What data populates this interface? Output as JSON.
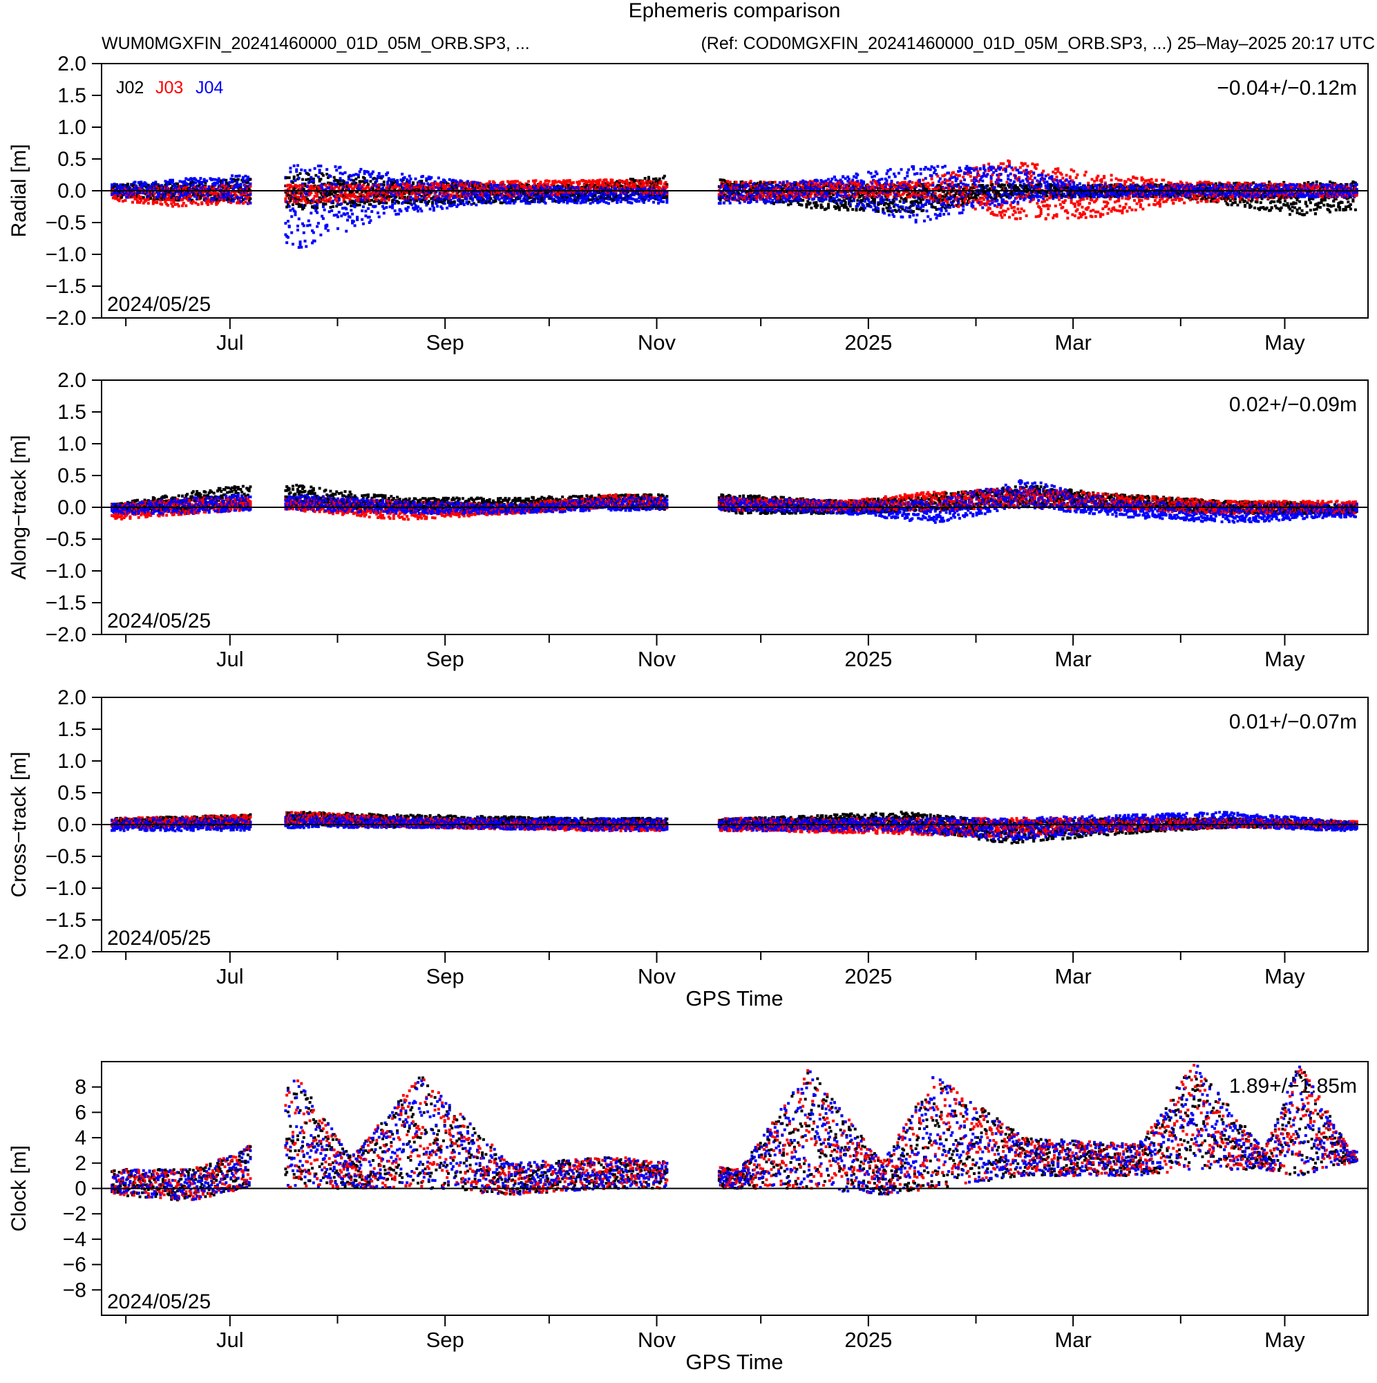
{
  "header": {
    "title": "Ephemeris comparison",
    "subtitle_left": "WUM0MGXFIN_20241460000_01D_05M_ORB.SP3, ...",
    "subtitle_right": "(Ref: COD0MGXFIN_20241460000_01D_05M_ORB.SP3, ...) 25–May–2025 20:17 UTC"
  },
  "legend": [
    {
      "name": "J02",
      "color": "#000000"
    },
    {
      "name": "J03",
      "color": "#ff0000"
    },
    {
      "name": "J04",
      "color": "#0000ff"
    }
  ],
  "chart_data": [
    {
      "type": "scatter",
      "ylabel": "Radial [m]",
      "ylim": [
        -2.0,
        2.0
      ],
      "yticks": [
        "2.0",
        "1.5",
        "1.0",
        "0.5",
        "0.0",
        "−0.5",
        "−1.0",
        "−1.5",
        "−2.0"
      ],
      "xticks": [
        "Jul",
        "Sep",
        "Nov",
        "2025",
        "Mar",
        "May"
      ],
      "xlim": [
        "2024-05-25",
        "2025-05-25"
      ],
      "start_label": "2024/05/25",
      "stat": "−0.04+/−0.12m",
      "series": [
        {
          "name": "J02",
          "color": "#000000"
        },
        {
          "name": "J03",
          "color": "#ff0000"
        },
        {
          "name": "J04",
          "color": "#0000ff"
        }
      ],
      "envelope": [
        {
          "x": "2024-05-28",
          "J02": [
            -0.1,
            0.1
          ],
          "J03": [
            -0.15,
            0.05
          ],
          "J04": [
            -0.1,
            0.12
          ]
        },
        {
          "x": "2024-06-15",
          "J02": [
            -0.15,
            0.12
          ],
          "J03": [
            -0.25,
            0.08
          ],
          "J04": [
            -0.12,
            0.18
          ]
        },
        {
          "x": "2024-07-05",
          "J02": [
            -0.15,
            0.2
          ],
          "J03": [
            -0.2,
            0.1
          ],
          "J04": [
            -0.2,
            0.25
          ]
        },
        {
          "x": "2024-07-20",
          "J02": [
            -0.3,
            0.3
          ],
          "J03": [
            -0.2,
            0.1
          ],
          "J04": [
            -0.95,
            0.45
          ]
        },
        {
          "x": "2024-08-15",
          "J02": [
            -0.2,
            0.2
          ],
          "J03": [
            -0.15,
            0.1
          ],
          "J04": [
            -0.4,
            0.3
          ]
        },
        {
          "x": "2024-09-15",
          "J02": [
            -0.2,
            0.1
          ],
          "J03": [
            -0.1,
            0.15
          ],
          "J04": [
            -0.2,
            0.1
          ]
        },
        {
          "x": "2024-10-15",
          "J02": [
            -0.15,
            0.1
          ],
          "J03": [
            -0.05,
            0.18
          ],
          "J04": [
            -0.2,
            0.05
          ]
        },
        {
          "x": "2024-11-01",
          "J02": [
            -0.15,
            0.25
          ],
          "J03": [
            -0.05,
            0.15
          ],
          "J04": [
            -0.2,
            0.05
          ]
        },
        {
          "x": "2024-11-25",
          "J02": [
            -0.15,
            0.15
          ],
          "J03": [
            -0.15,
            0.15
          ],
          "J04": [
            -0.2,
            0.1
          ]
        },
        {
          "x": "2024-12-20",
          "J02": [
            -0.3,
            0.1
          ],
          "J03": [
            -0.1,
            0.15
          ],
          "J04": [
            -0.15,
            0.2
          ]
        },
        {
          "x": "2025-01-15",
          "J02": [
            -0.35,
            0.1
          ],
          "J03": [
            -0.1,
            0.15
          ],
          "J04": [
            -0.5,
            0.4
          ]
        },
        {
          "x": "2025-02-10",
          "J02": [
            -0.1,
            0.1
          ],
          "J03": [
            -0.45,
            0.5
          ],
          "J04": [
            -0.2,
            0.4
          ]
        },
        {
          "x": "2025-03-05",
          "J02": [
            -0.1,
            0.1
          ],
          "J03": [
            -0.45,
            0.3
          ],
          "J04": [
            -0.1,
            0.1
          ]
        },
        {
          "x": "2025-04-01",
          "J02": [
            -0.1,
            0.1
          ],
          "J03": [
            -0.2,
            0.15
          ],
          "J04": [
            -0.1,
            0.1
          ]
        },
        {
          "x": "2025-05-05",
          "J02": [
            -0.4,
            0.15
          ],
          "J03": [
            -0.1,
            0.1
          ],
          "J04": [
            -0.1,
            0.1
          ]
        },
        {
          "x": "2025-05-20",
          "J02": [
            -0.3,
            0.15
          ],
          "J03": [
            -0.1,
            0.1
          ],
          "J04": [
            -0.1,
            0.1
          ]
        }
      ]
    },
    {
      "type": "scatter",
      "ylabel": "Along−track [m]",
      "ylim": [
        -2.0,
        2.0
      ],
      "yticks": [
        "2.0",
        "1.5",
        "1.0",
        "0.5",
        "0.0",
        "−0.5",
        "−1.0",
        "−1.5",
        "−2.0"
      ],
      "xticks": [
        "Jul",
        "Sep",
        "Nov",
        "2025",
        "Mar",
        "May"
      ],
      "xlim": [
        "2024-05-25",
        "2025-05-25"
      ],
      "start_label": "2024/05/25",
      "stat": "0.02+/−0.09m",
      "series": [
        {
          "name": "J02",
          "color": "#000000"
        },
        {
          "name": "J03",
          "color": "#ff0000"
        },
        {
          "name": "J04",
          "color": "#0000ff"
        }
      ],
      "envelope": [
        {
          "x": "2024-05-28",
          "J02": [
            -0.05,
            0.05
          ],
          "J03": [
            -0.2,
            0.05
          ],
          "J04": [
            -0.1,
            0.05
          ]
        },
        {
          "x": "2024-06-20",
          "J02": [
            -0.05,
            0.25
          ],
          "J03": [
            -0.1,
            0.15
          ],
          "J04": [
            -0.1,
            0.15
          ]
        },
        {
          "x": "2024-07-05",
          "J02": [
            0.0,
            0.35
          ],
          "J03": [
            -0.05,
            0.15
          ],
          "J04": [
            -0.05,
            0.2
          ]
        },
        {
          "x": "2024-07-20",
          "J02": [
            0.0,
            0.35
          ],
          "J03": [
            -0.05,
            0.15
          ],
          "J04": [
            -0.05,
            0.2
          ]
        },
        {
          "x": "2024-08-20",
          "J02": [
            -0.05,
            0.15
          ],
          "J03": [
            -0.2,
            0.1
          ],
          "J04": [
            -0.1,
            0.1
          ]
        },
        {
          "x": "2024-09-20",
          "J02": [
            -0.05,
            0.15
          ],
          "J03": [
            -0.1,
            0.05
          ],
          "J04": [
            -0.1,
            0.05
          ]
        },
        {
          "x": "2024-10-20",
          "J02": [
            0.0,
            0.2
          ],
          "J03": [
            0.0,
            0.2
          ],
          "J04": [
            -0.05,
            0.15
          ]
        },
        {
          "x": "2024-11-25",
          "J02": [
            -0.1,
            0.2
          ],
          "J03": [
            -0.05,
            0.15
          ],
          "J04": [
            -0.05,
            0.15
          ]
        },
        {
          "x": "2024-12-25",
          "J02": [
            -0.1,
            0.1
          ],
          "J03": [
            -0.05,
            0.1
          ],
          "J04": [
            -0.1,
            0.1
          ]
        },
        {
          "x": "2025-01-20",
          "J02": [
            -0.05,
            0.2
          ],
          "J03": [
            -0.05,
            0.25
          ],
          "J04": [
            -0.25,
            0.1
          ]
        },
        {
          "x": "2025-02-15",
          "J02": [
            0.0,
            0.35
          ],
          "J03": [
            0.0,
            0.3
          ],
          "J04": [
            0.0,
            0.45
          ]
        },
        {
          "x": "2025-03-15",
          "J02": [
            0.0,
            0.2
          ],
          "J03": [
            -0.05,
            0.2
          ],
          "J04": [
            -0.15,
            0.1
          ]
        },
        {
          "x": "2025-04-15",
          "J02": [
            -0.1,
            0.1
          ],
          "J03": [
            -0.1,
            0.1
          ],
          "J04": [
            -0.25,
            0.05
          ]
        },
        {
          "x": "2025-05-20",
          "J02": [
            -0.1,
            0.05
          ],
          "J03": [
            -0.1,
            0.1
          ],
          "J04": [
            -0.15,
            0.05
          ]
        }
      ]
    },
    {
      "type": "scatter",
      "ylabel": "Cross−track [m]",
      "ylim": [
        -2.0,
        2.0
      ],
      "yticks": [
        "2.0",
        "1.5",
        "1.0",
        "0.5",
        "0.0",
        "−0.5",
        "−1.0",
        "−1.5",
        "−2.0"
      ],
      "xticks": [
        "Jul",
        "Sep",
        "Nov",
        "2025",
        "Mar",
        "May"
      ],
      "xlim": [
        "2024-05-25",
        "2025-05-25"
      ],
      "start_label": "2024/05/25",
      "stat": "0.01+/−0.07m",
      "xlabel": "GPS Time",
      "series": [
        {
          "name": "J02",
          "color": "#000000"
        },
        {
          "name": "J03",
          "color": "#ff0000"
        },
        {
          "name": "J04",
          "color": "#0000ff"
        }
      ],
      "envelope": [
        {
          "x": "2024-05-28",
          "J02": [
            -0.05,
            0.1
          ],
          "J03": [
            -0.05,
            0.1
          ],
          "J04": [
            -0.1,
            0.1
          ]
        },
        {
          "x": "2024-07-05",
          "J02": [
            -0.05,
            0.15
          ],
          "J03": [
            -0.05,
            0.15
          ],
          "J04": [
            -0.1,
            0.1
          ]
        },
        {
          "x": "2024-07-20",
          "J02": [
            0.0,
            0.2
          ],
          "J03": [
            0.0,
            0.2
          ],
          "J04": [
            -0.05,
            0.15
          ]
        },
        {
          "x": "2024-08-25",
          "J02": [
            -0.05,
            0.15
          ],
          "J03": [
            -0.05,
            0.1
          ],
          "J04": [
            -0.05,
            0.1
          ]
        },
        {
          "x": "2024-10-15",
          "J02": [
            -0.05,
            0.1
          ],
          "J03": [
            -0.1,
            0.05
          ],
          "J04": [
            -0.1,
            0.1
          ]
        },
        {
          "x": "2024-11-25",
          "J02": [
            -0.05,
            0.1
          ],
          "J03": [
            -0.1,
            0.1
          ],
          "J04": [
            -0.1,
            0.1
          ]
        },
        {
          "x": "2025-01-10",
          "J02": [
            -0.05,
            0.2
          ],
          "J03": [
            -0.15,
            0.1
          ],
          "J04": [
            -0.1,
            0.1
          ]
        },
        {
          "x": "2025-02-10",
          "J02": [
            -0.3,
            0.05
          ],
          "J03": [
            -0.2,
            0.1
          ],
          "J04": [
            -0.25,
            0.1
          ]
        },
        {
          "x": "2025-03-15",
          "J02": [
            -0.15,
            0.1
          ],
          "J03": [
            -0.1,
            0.1
          ],
          "J04": [
            -0.1,
            0.15
          ]
        },
        {
          "x": "2025-04-15",
          "J02": [
            -0.05,
            0.1
          ],
          "J03": [
            -0.05,
            0.1
          ],
          "J04": [
            -0.05,
            0.2
          ]
        },
        {
          "x": "2025-05-20",
          "J02": [
            -0.05,
            0.05
          ],
          "J03": [
            -0.05,
            0.05
          ],
          "J04": [
            -0.1,
            0.05
          ]
        }
      ]
    },
    {
      "type": "scatter",
      "ylabel": "Clock [m]",
      "ylim": [
        -10,
        10
      ],
      "yticks": [
        "8",
        "6",
        "4",
        "2",
        "0",
        "−2",
        "−4",
        "−6",
        "−8"
      ],
      "xticks": [
        "Jul",
        "Sep",
        "Nov",
        "2025",
        "Mar",
        "May"
      ],
      "xlim": [
        "2024-05-25",
        "2025-05-25"
      ],
      "start_label": "2024/05/25",
      "stat": "1.89+/−1.85m",
      "xlabel": "GPS Time",
      "series": [
        {
          "name": "J02",
          "color": "#000000"
        },
        {
          "name": "J03",
          "color": "#ff0000"
        },
        {
          "name": "J04",
          "color": "#0000ff"
        }
      ],
      "envelope": [
        {
          "x": "2024-05-28",
          "all": [
            -0.5,
            1.5
          ]
        },
        {
          "x": "2024-06-20",
          "all": [
            -1.0,
            1.5
          ]
        },
        {
          "x": "2024-07-05",
          "all": [
            0.0,
            3.0
          ]
        },
        {
          "x": "2024-07-20",
          "all": [
            0.0,
            9.0
          ]
        },
        {
          "x": "2024-08-05",
          "all": [
            0.0,
            2.5
          ]
        },
        {
          "x": "2024-08-25",
          "all": [
            0.0,
            9.0
          ]
        },
        {
          "x": "2024-09-20",
          "all": [
            -0.5,
            2.0
          ]
        },
        {
          "x": "2024-10-20",
          "all": [
            0.0,
            2.5
          ]
        },
        {
          "x": "2024-11-25",
          "all": [
            0.0,
            1.5
          ]
        },
        {
          "x": "2024-12-15",
          "all": [
            0.0,
            9.5
          ]
        },
        {
          "x": "2025-01-05",
          "all": [
            -0.5,
            2.0
          ]
        },
        {
          "x": "2025-01-20",
          "all": [
            0.0,
            9.0
          ]
        },
        {
          "x": "2025-02-15",
          "all": [
            1.0,
            4.0
          ]
        },
        {
          "x": "2025-03-20",
          "all": [
            1.0,
            3.5
          ]
        },
        {
          "x": "2025-04-05",
          "all": [
            1.5,
            10.0
          ]
        },
        {
          "x": "2025-04-25",
          "all": [
            1.5,
            3.0
          ]
        },
        {
          "x": "2025-05-05",
          "all": [
            1.0,
            10.0
          ]
        },
        {
          "x": "2025-05-20",
          "all": [
            2.0,
            3.0
          ]
        }
      ]
    }
  ]
}
